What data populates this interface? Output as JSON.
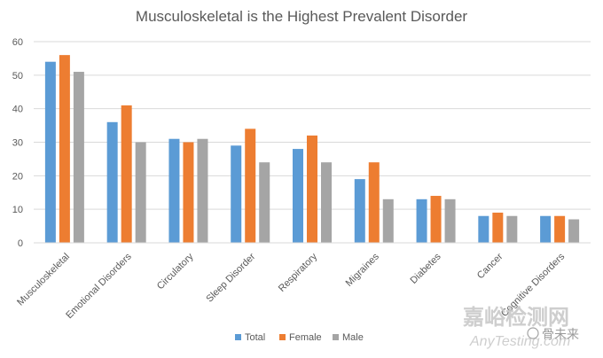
{
  "chart_data": {
    "type": "bar",
    "title": "Musculoskeletal is the Highest Prevalent Disorder",
    "xlabel": "",
    "ylabel": "",
    "ylim": [
      0,
      60
    ],
    "yticks": [
      0,
      10,
      20,
      30,
      40,
      50,
      60
    ],
    "grid": true,
    "legend_position": "bottom",
    "categories": [
      "Musculoskeletal",
      "Emotional Disorders",
      "Circulatory",
      "Sleep Disorder",
      "Respiratory",
      "Migraines",
      "Diabetes",
      "Cancer",
      "Cognitive Disorders"
    ],
    "series": [
      {
        "name": "Total",
        "color": "#5b9bd5",
        "values": [
          54,
          36,
          31,
          29,
          28,
          19,
          13,
          8,
          8
        ]
      },
      {
        "name": "Female",
        "color": "#ed7d31",
        "values": [
          56,
          41,
          30,
          34,
          32,
          24,
          14,
          9,
          8
        ]
      },
      {
        "name": "Male",
        "color": "#a5a5a5",
        "values": [
          51,
          30,
          31,
          24,
          24,
          13,
          13,
          8,
          7
        ]
      }
    ]
  },
  "watermark": {
    "line1": "嘉峪检测网",
    "line2": "AnyTesting.com",
    "tag": "骨未来"
  }
}
